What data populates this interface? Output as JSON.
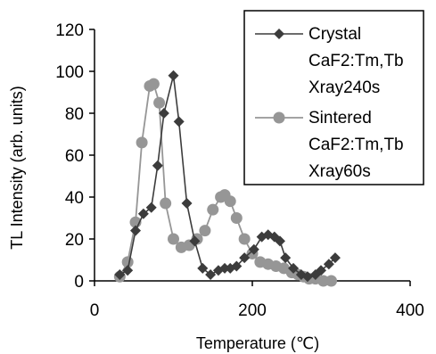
{
  "chart_data": {
    "type": "line",
    "xlabel": "Temperature (℃)",
    "ylabel": "TL Intensity (arb. units)",
    "xlim": [
      0,
      400
    ],
    "ylim": [
      0,
      120
    ],
    "xticks": [
      0,
      200,
      400
    ],
    "yticks": [
      0,
      20,
      40,
      60,
      80,
      100,
      120
    ],
    "grid": false,
    "legend_position": "top-right",
    "series": [
      {
        "name": "Crystal CaF2:Tm,Tb Xray240s",
        "legend_lines": [
          "Crystal",
          "CaF2:Tm,Tb",
          "Xray240s"
        ],
        "marker": "diamond",
        "color": "#3c3c3c",
        "x": [
          32,
          42,
          52,
          62,
          72,
          80,
          88,
          100,
          107,
          117,
          127,
          137,
          147,
          157,
          165,
          172,
          180,
          190,
          202,
          212,
          220,
          228,
          235,
          242,
          252,
          262,
          270,
          280,
          287,
          297,
          305
        ],
        "y": [
          3,
          5,
          24,
          32,
          35,
          55,
          80,
          98,
          76,
          37,
          19,
          6,
          3,
          5,
          6,
          6,
          7,
          11,
          15,
          21,
          22,
          21,
          19,
          11,
          6,
          3,
          2,
          3,
          5,
          8,
          11
        ]
      },
      {
        "name": "Sintered CaF2:Tm,Tb Xray60s",
        "legend_lines": [
          "Sintered",
          "CaF2:Tm,Tb",
          "Xray60s"
        ],
        "marker": "circle",
        "color": "#969696",
        "x": [
          32,
          42,
          52,
          60,
          70,
          75,
          82,
          90,
          100,
          110,
          120,
          130,
          140,
          150,
          160,
          165,
          172,
          180,
          190,
          200,
          210,
          220,
          230,
          240,
          250,
          258,
          265,
          272,
          280,
          290,
          300
        ],
        "y": [
          2,
          9,
          28,
          66,
          93,
          94,
          85,
          37,
          20,
          16,
          17,
          20,
          24,
          34,
          40,
          41,
          38,
          30,
          20,
          13,
          9,
          8,
          7,
          6,
          4,
          3,
          2,
          1,
          1,
          0,
          0
        ]
      }
    ]
  }
}
